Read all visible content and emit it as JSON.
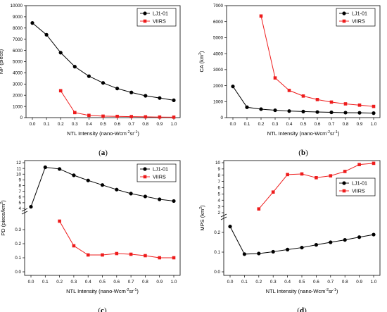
{
  "colors": {
    "lj1": "#000000",
    "viirs": "#ee1c1c"
  },
  "panels": [
    {
      "label": "(a)"
    },
    {
      "label": "(b)"
    },
    {
      "label": "(c)"
    },
    {
      "label": "(d)"
    }
  ],
  "chart_data": [
    {
      "type": "line",
      "ylabel": "NP (piece)",
      "xlabel": "NTL Intensity (nano-Wcm⁻²sr⁻¹)",
      "xlim": [
        0.0,
        1.0
      ],
      "ylim": [
        0,
        10000
      ],
      "xticks": [
        "0.0",
        "0.1",
        "0.2",
        "0.3",
        "0.4",
        "0.5",
        "0.6",
        "0.7",
        "0.8",
        "0.9",
        "1.0"
      ],
      "yticks": [
        "0",
        "1000",
        "2000",
        "3000",
        "4000",
        "5000",
        "6000",
        "7000",
        "8000",
        "9000",
        "10000"
      ],
      "legend_position": "top-right",
      "series": [
        {
          "name": "LJ1-01",
          "x": [
            0,
            0.1,
            0.2,
            0.3,
            0.4,
            0.5,
            0.6,
            0.7,
            0.8,
            0.9,
            1.0
          ],
          "values": [
            8450,
            7400,
            5800,
            4550,
            3700,
            3100,
            2600,
            2250,
            1950,
            1750,
            1550
          ]
        },
        {
          "name": "VIIRS",
          "x": [
            0.2,
            0.3,
            0.4,
            0.5,
            0.6,
            0.7,
            0.8,
            0.9,
            1.0
          ],
          "values": [
            2400,
            450,
            200,
            130,
            110,
            90,
            70,
            50,
            40
          ]
        }
      ]
    },
    {
      "type": "line",
      "ylabel": "CA (km²)",
      "xlabel": "NTL Intensity (nano-Wcm⁻²sr⁻¹)",
      "xlim": [
        0.0,
        1.0
      ],
      "ylim": [
        0,
        7000
      ],
      "xticks": [
        "0.0",
        "0.1",
        "0.2",
        "0.3",
        "0.4",
        "0.5",
        "0.6",
        "0.7",
        "0.8",
        "0.9",
        "1.0"
      ],
      "yticks": [
        "0",
        "1000",
        "2000",
        "3000",
        "4000",
        "5000",
        "6000",
        "7000"
      ],
      "legend_position": "top-right",
      "series": [
        {
          "name": "LJ1-01",
          "x": [
            0,
            0.1,
            0.2,
            0.3,
            0.4,
            0.5,
            0.6,
            0.7,
            0.8,
            0.9,
            1.0
          ],
          "values": [
            1950,
            650,
            530,
            460,
            410,
            380,
            350,
            330,
            310,
            300,
            280
          ]
        },
        {
          "name": "VIIRS",
          "x": [
            0.2,
            0.3,
            0.4,
            0.5,
            0.6,
            0.7,
            0.8,
            0.9,
            1.0
          ],
          "values": [
            6350,
            2480,
            1700,
            1350,
            1130,
            970,
            860,
            780,
            700
          ]
        }
      ]
    },
    {
      "type": "line",
      "ylabel": "PD (piece/km²)",
      "xlabel": "NTL Intensity (nano-Wcm⁻²sr⁻¹)",
      "xlim": [
        0.0,
        1.0
      ],
      "broken_axis": true,
      "ylim_lower": [
        0,
        0.4
      ],
      "ylim_upper": [
        4,
        12
      ],
      "xticks": [
        "0.0",
        "0.1",
        "0.2",
        "0.3",
        "0.4",
        "0.5",
        "0.6",
        "0.7",
        "0.8",
        "0.9",
        "1.0"
      ],
      "yticks_lower": [
        "0.0",
        "0.1",
        "0.2",
        "0.3"
      ],
      "yticks_upper": [
        "4",
        "5",
        "6",
        "7",
        "8",
        "9",
        "10",
        "11",
        "12"
      ],
      "legend_position": "top-right",
      "series": [
        {
          "name": "LJ1-01",
          "x": [
            0,
            0.1,
            0.2,
            0.3,
            0.4,
            0.5,
            0.6,
            0.7,
            0.8,
            0.9,
            1.0
          ],
          "values": [
            4.3,
            11.2,
            10.9,
            9.8,
            8.9,
            8.1,
            7.3,
            6.6,
            6.1,
            5.6,
            5.3
          ]
        },
        {
          "name": "VIIRS",
          "x": [
            0.2,
            0.3,
            0.4,
            0.5,
            0.6,
            0.7,
            0.8,
            0.9,
            1.0
          ],
          "values": [
            0.36,
            0.185,
            0.12,
            0.12,
            0.13,
            0.125,
            0.115,
            0.1,
            0.1
          ]
        }
      ]
    },
    {
      "type": "line",
      "ylabel": "MPS (km²)",
      "xlabel": "NTL Intensity (nano-Wcm⁻²sr⁻¹)",
      "xlim": [
        0.0,
        1.0
      ],
      "broken_axis": true,
      "ylim_lower": [
        0,
        0.25
      ],
      "ylim_upper": [
        2,
        10
      ],
      "xticks": [
        "0.0",
        "0.1",
        "0.2",
        "0.3",
        "0.4",
        "0.5",
        "0.6",
        "0.7",
        "0.8",
        "0.9",
        "1.0"
      ],
      "yticks_lower": [
        "0.0",
        "0.1",
        "0.2"
      ],
      "yticks_upper": [
        "2",
        "3",
        "4",
        "5",
        "6",
        "7",
        "8",
        "9",
        "10"
      ],
      "legend_position": "right",
      "series": [
        {
          "name": "LJ1-01",
          "x": [
            0,
            0.1,
            0.2,
            0.3,
            0.4,
            0.5,
            0.6,
            0.7,
            0.8,
            0.9,
            1.0
          ],
          "values": [
            0.23,
            0.09,
            0.093,
            0.102,
            0.113,
            0.123,
            0.137,
            0.15,
            0.162,
            0.176,
            0.189
          ]
        },
        {
          "name": "VIIRS",
          "x": [
            0.2,
            0.3,
            0.4,
            0.5,
            0.6,
            0.7,
            0.8,
            0.9,
            1.0
          ],
          "values": [
            2.6,
            5.3,
            8.1,
            8.2,
            7.6,
            7.9,
            8.6,
            9.7,
            9.9
          ]
        }
      ]
    }
  ]
}
